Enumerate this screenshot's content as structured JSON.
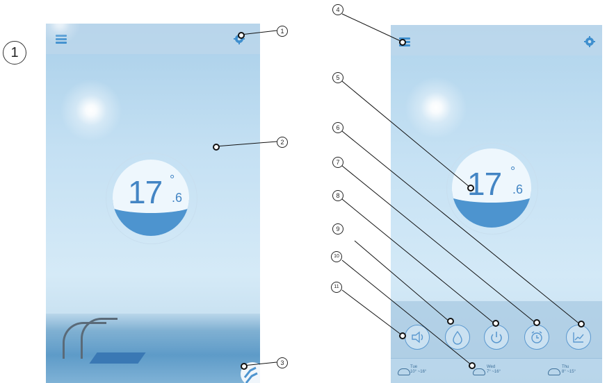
{
  "figure_label": "1",
  "screen1": {
    "temperature": {
      "integer": "17",
      "degree": "°",
      "decimal": ".6"
    },
    "icons": {
      "menu": "hamburger-menu-icon",
      "settings": "gear-icon",
      "corner": "chevron-up-icon"
    }
  },
  "screen2": {
    "temperature": {
      "integer": "17",
      "degree": "°",
      "decimal": ".6"
    },
    "controls": [
      {
        "name": "speaker-icon"
      },
      {
        "name": "water-drop-icon"
      },
      {
        "name": "power-icon"
      },
      {
        "name": "alarm-clock-icon"
      },
      {
        "name": "chart-icon"
      }
    ],
    "forecast": [
      {
        "day": "Tue",
        "range": "10° ~16°"
      },
      {
        "day": "Wed",
        "range": "7° ~16°"
      },
      {
        "day": "Thu",
        "range": "8° ~15°"
      }
    ]
  },
  "callouts": [
    "1",
    "2",
    "3",
    "4",
    "5",
    "6",
    "7",
    "8",
    "9",
    "10",
    "11"
  ],
  "colors": {
    "accent": "#4385c4",
    "water": "#4d94cf",
    "sky": "#c4e0f3"
  }
}
